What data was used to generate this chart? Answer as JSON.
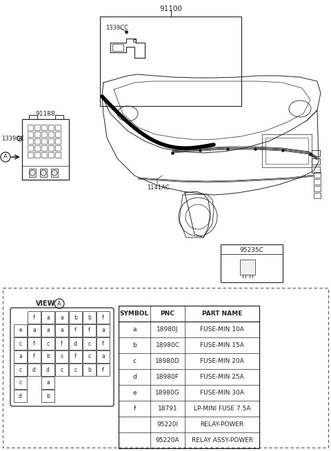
{
  "part_number_main": "91100",
  "part_number_sub1": "91188",
  "part_number_sub2": "95235C",
  "label_1339CC_top": "1339CC",
  "label_1339CC_left": "1339CC",
  "label_1141AC": "1141AC",
  "view_label": "VIEW",
  "bg_color": "#ffffff",
  "line_color": "#222222",
  "table_headers": [
    "SYMBOL",
    "PNC",
    "PART NAME"
  ],
  "table_rows": [
    [
      "a",
      "18980J",
      "FUSE-MIN 10A"
    ],
    [
      "b",
      "18980C",
      "FUSE-MIN 15A"
    ],
    [
      "c",
      "18980D",
      "FUSE-MIN 20A"
    ],
    [
      "d",
      "18980F",
      "FUSE-MIN 25A"
    ],
    [
      "e",
      "18980G",
      "FUSE-MIN 30A"
    ],
    [
      "f",
      "18791",
      "LP-MINI FUSE 7.5A"
    ],
    [
      "",
      "95220I",
      "RELAY-POWER"
    ],
    [
      "",
      "95220A",
      "RELAY ASSY-POWER"
    ]
  ],
  "fuse_grid": [
    [
      "",
      "f",
      "a",
      "a",
      "b",
      "b",
      "f"
    ],
    [
      "e",
      "a",
      "a",
      "a",
      "f",
      "f",
      "a"
    ],
    [
      "c",
      "f",
      "c",
      "f",
      "d",
      "c",
      "f"
    ],
    [
      "a",
      "f",
      "b",
      "c",
      "f",
      "c",
      "a"
    ],
    [
      "c",
      "d",
      "d",
      "c",
      "c",
      "b",
      "f"
    ],
    [
      "c",
      "",
      "a",
      "",
      "",
      "",
      ""
    ],
    [
      "d",
      "",
      "b",
      "",
      "",
      "",
      ""
    ]
  ]
}
